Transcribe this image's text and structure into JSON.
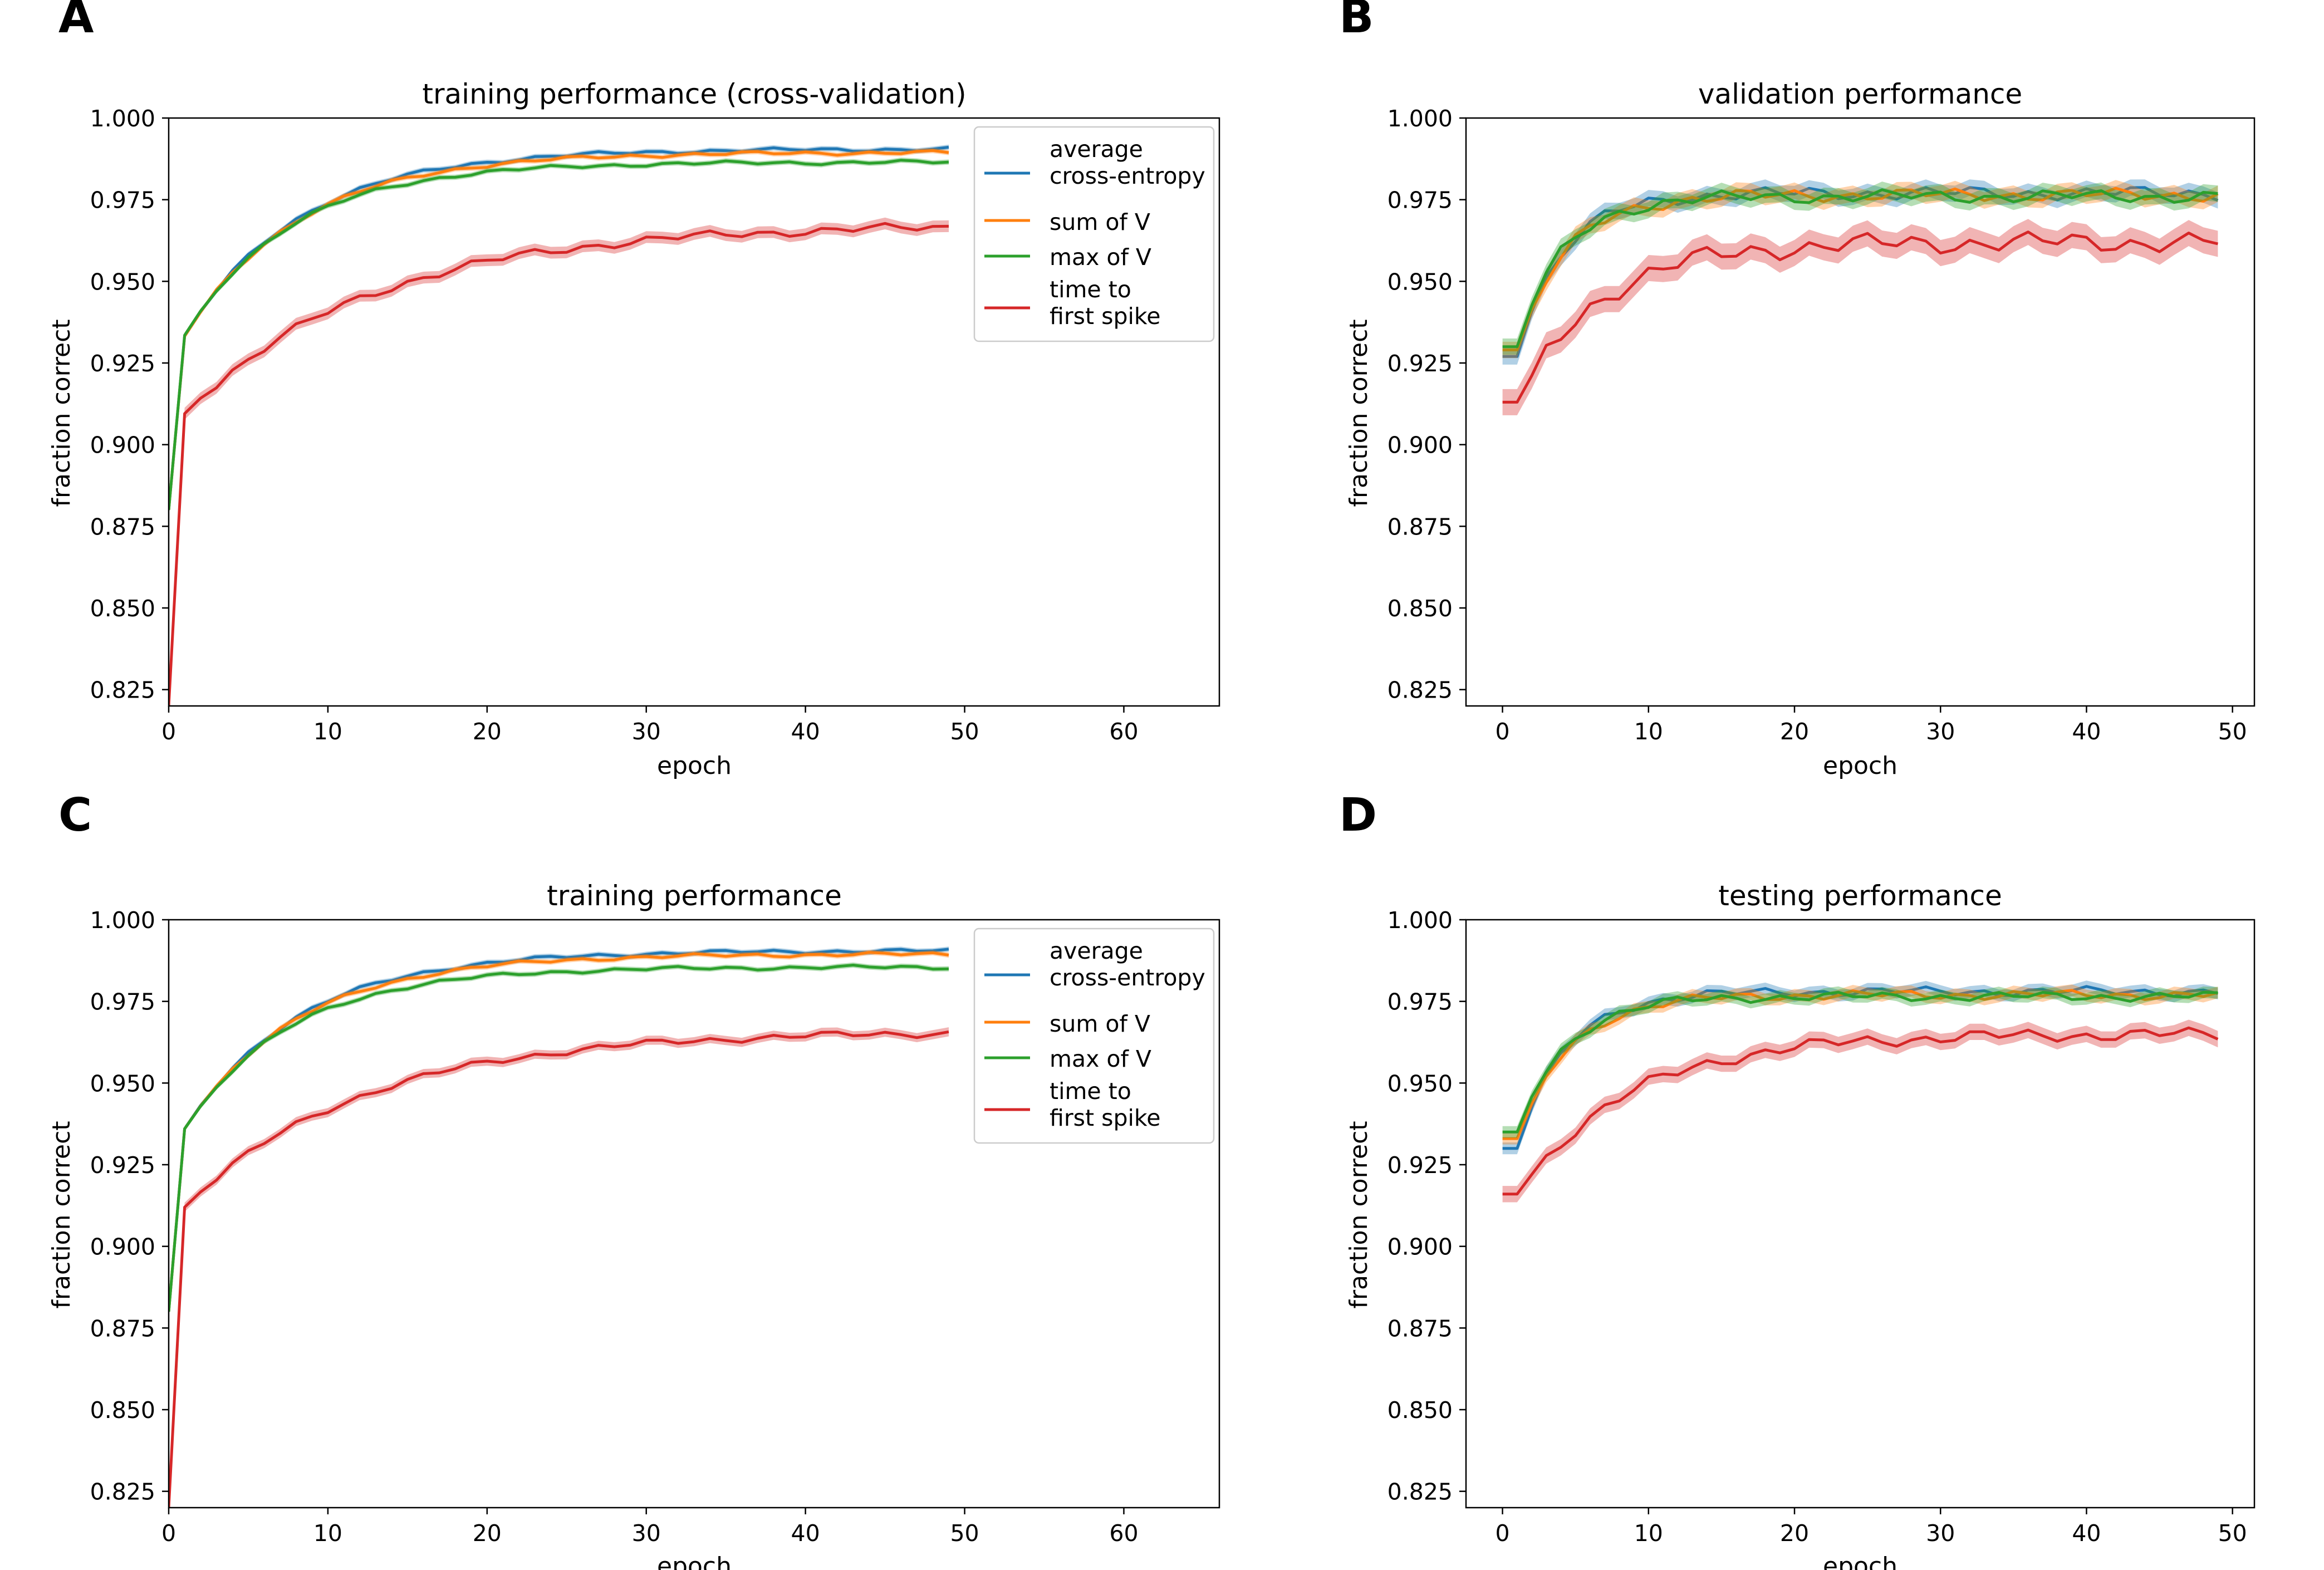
{
  "figure": {
    "panel_letters": [
      "A",
      "B",
      "C",
      "D"
    ]
  },
  "legend_items": [
    {
      "lines": [
        "average",
        "cross-entropy"
      ],
      "color": "#1f77b4"
    },
    {
      "lines": [
        "sum of V"
      ],
      "color": "#ff7f0e"
    },
    {
      "lines": [
        "max of V"
      ],
      "color": "#2ca02c"
    },
    {
      "lines": [
        "time to",
        "first spike"
      ],
      "color": "#d62728"
    }
  ],
  "chart_data": [
    {
      "panel": "A",
      "type": "line",
      "title": "training performance (cross-validation)",
      "xlabel": "epoch",
      "ylabel": "fraction correct",
      "xlim": [
        0,
        66
      ],
      "ylim": [
        0.82,
        1.0
      ],
      "xticks": [
        0,
        10,
        20,
        30,
        40,
        50,
        60
      ],
      "yticks": [
        0.825,
        0.85,
        0.875,
        0.9,
        0.925,
        0.95,
        0.975,
        1.0
      ],
      "legend": "upper right",
      "series": [
        {
          "name": "average cross-entropy",
          "color": "#1f77b4",
          "start": 0.88,
          "a": 0.9332,
          "b": 0.9905,
          "k": 0.14,
          "band": 0.0008
        },
        {
          "name": "sum of V",
          "color": "#ff7f0e",
          "start": 0.88,
          "a": 0.9332,
          "b": 0.9895,
          "k": 0.14,
          "band": 0.0008
        },
        {
          "name": "max of V",
          "color": "#2ca02c",
          "start": 0.88,
          "a": 0.9335,
          "b": 0.9865,
          "k": 0.15,
          "band": 0.0008
        },
        {
          "name": "time to first spike",
          "color": "#d62728",
          "start": 0.82,
          "a": 0.9095,
          "b": 0.9675,
          "k": 0.085,
          "band": 0.0018
        }
      ]
    },
    {
      "panel": "B",
      "type": "line",
      "title": "validation performance",
      "xlabel": "epoch",
      "ylabel": "fraction correct",
      "xlim": [
        -2.5,
        51.5
      ],
      "ylim": [
        0.82,
        1.0
      ],
      "xticks": [
        0,
        10,
        20,
        30,
        40,
        50
      ],
      "yticks": [
        0.825,
        0.85,
        0.875,
        0.9,
        0.925,
        0.95,
        0.975,
        1.0
      ],
      "series": [
        {
          "name": "average cross-entropy",
          "color": "#1f77b4",
          "start": 0.927,
          "a": 0.927,
          "b": 0.977,
          "k": 0.32,
          "band": 0.0025
        },
        {
          "name": "sum of V",
          "color": "#ff7f0e",
          "start": 0.929,
          "a": 0.929,
          "b": 0.9765,
          "k": 0.3,
          "band": 0.0025
        },
        {
          "name": "max of V",
          "color": "#2ca02c",
          "start": 0.93,
          "a": 0.93,
          "b": 0.976,
          "k": 0.32,
          "band": 0.0025
        },
        {
          "name": "time to first spike",
          "color": "#d62728",
          "start": 0.913,
          "a": 0.913,
          "b": 0.962,
          "k": 0.18,
          "band": 0.004
        }
      ]
    },
    {
      "panel": "C",
      "type": "line",
      "title": "training performance",
      "xlabel": "epoch",
      "ylabel": "fraction correct",
      "xlim": [
        0,
        66
      ],
      "ylim": [
        0.82,
        1.0
      ],
      "xticks": [
        0,
        10,
        20,
        30,
        40,
        50,
        60
      ],
      "yticks": [
        0.825,
        0.85,
        0.875,
        0.9,
        0.925,
        0.95,
        0.975,
        1.0
      ],
      "legend": "upper right",
      "series": [
        {
          "name": "average cross-entropy",
          "color": "#1f77b4",
          "start": 0.88,
          "a": 0.936,
          "b": 0.9905,
          "k": 0.14,
          "band": 0.0008
        },
        {
          "name": "sum of V",
          "color": "#ff7f0e",
          "start": 0.88,
          "a": 0.936,
          "b": 0.9895,
          "k": 0.14,
          "band": 0.0008
        },
        {
          "name": "max of V",
          "color": "#2ca02c",
          "start": 0.88,
          "a": 0.936,
          "b": 0.9855,
          "k": 0.15,
          "band": 0.0008
        },
        {
          "name": "time to first spike",
          "color": "#d62728",
          "start": 0.82,
          "a": 0.912,
          "b": 0.966,
          "k": 0.09,
          "band": 0.0014
        }
      ]
    },
    {
      "panel": "D",
      "type": "line",
      "title": "testing performance",
      "xlabel": "epoch",
      "ylabel": "fraction correct",
      "xlim": [
        -2.5,
        51.5
      ],
      "ylim": [
        0.82,
        1.0
      ],
      "xticks": [
        0,
        10,
        20,
        30,
        40,
        50
      ],
      "yticks": [
        0.825,
        0.85,
        0.875,
        0.9,
        0.925,
        0.95,
        0.975,
        1.0
      ],
      "series": [
        {
          "name": "average cross-entropy",
          "color": "#1f77b4",
          "start": 0.93,
          "a": 0.93,
          "b": 0.978,
          "k": 0.3,
          "band": 0.0018
        },
        {
          "name": "sum of V",
          "color": "#ff7f0e",
          "start": 0.933,
          "a": 0.933,
          "b": 0.977,
          "k": 0.28,
          "band": 0.0018
        },
        {
          "name": "max of V",
          "color": "#2ca02c",
          "start": 0.935,
          "a": 0.935,
          "b": 0.9765,
          "k": 0.3,
          "band": 0.0018
        },
        {
          "name": "time to first spike",
          "color": "#d62728",
          "start": 0.916,
          "a": 0.916,
          "b": 0.965,
          "k": 0.13,
          "band": 0.0025
        }
      ]
    }
  ]
}
